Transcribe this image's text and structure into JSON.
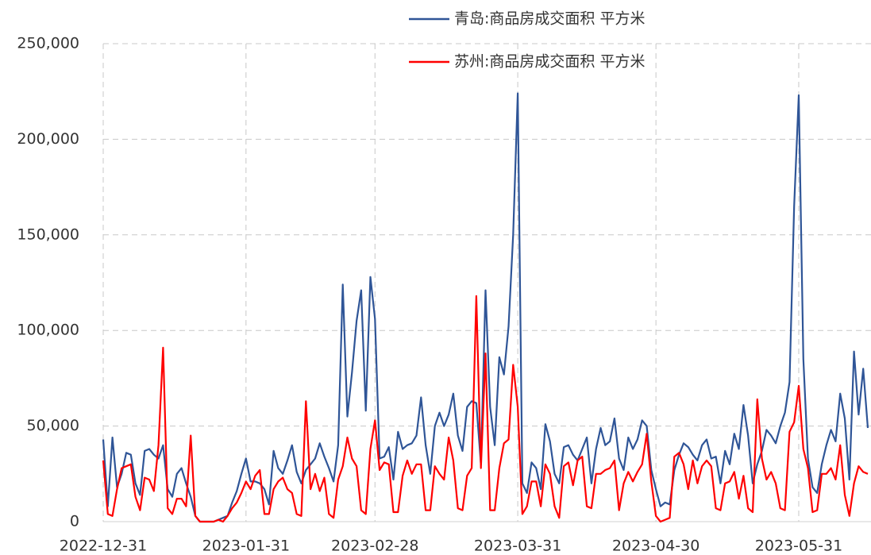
{
  "chart_data": {
    "type": "line",
    "x": [
      "2022-12-31",
      "2023-01-01",
      "2023-01-02",
      "2023-01-03",
      "2023-01-04",
      "2023-01-05",
      "2023-01-06",
      "2023-01-07",
      "2023-01-08",
      "2023-01-09",
      "2023-01-10",
      "2023-01-11",
      "2023-01-12",
      "2023-01-13",
      "2023-01-14",
      "2023-01-15",
      "2023-01-16",
      "2023-01-17",
      "2023-01-18",
      "2023-01-19",
      "2023-01-20",
      "2023-01-21",
      "2023-01-22",
      "2023-01-23",
      "2023-01-24",
      "2023-01-25",
      "2023-01-26",
      "2023-01-27",
      "2023-01-28",
      "2023-01-29",
      "2023-01-30",
      "2023-01-31",
      "2023-02-01",
      "2023-02-02",
      "2023-02-03",
      "2023-02-04",
      "2023-02-05",
      "2023-02-06",
      "2023-02-07",
      "2023-02-08",
      "2023-02-09",
      "2023-02-10",
      "2023-02-11",
      "2023-02-12",
      "2023-02-13",
      "2023-02-14",
      "2023-02-15",
      "2023-02-16",
      "2023-02-17",
      "2023-02-18",
      "2023-02-19",
      "2023-02-20",
      "2023-02-21",
      "2023-02-22",
      "2023-02-23",
      "2023-02-24",
      "2023-02-25",
      "2023-02-26",
      "2023-02-27",
      "2023-02-28",
      "2023-03-01",
      "2023-03-02",
      "2023-03-03",
      "2023-03-04",
      "2023-03-05",
      "2023-03-06",
      "2023-03-07",
      "2023-03-08",
      "2023-03-09",
      "2023-03-10",
      "2023-03-11",
      "2023-03-12",
      "2023-03-13",
      "2023-03-14",
      "2023-03-15",
      "2023-03-16",
      "2023-03-17",
      "2023-03-18",
      "2023-03-19",
      "2023-03-20",
      "2023-03-21",
      "2023-03-22",
      "2023-03-23",
      "2023-03-24",
      "2023-03-25",
      "2023-03-26",
      "2023-03-27",
      "2023-03-28",
      "2023-03-29",
      "2023-03-30",
      "2023-03-31",
      "2023-04-01",
      "2023-04-02",
      "2023-04-03",
      "2023-04-04",
      "2023-04-05",
      "2023-04-06",
      "2023-04-07",
      "2023-04-08",
      "2023-04-09",
      "2023-04-10",
      "2023-04-11",
      "2023-04-12",
      "2023-04-13",
      "2023-04-14",
      "2023-04-15",
      "2023-04-16",
      "2023-04-17",
      "2023-04-18",
      "2023-04-19",
      "2023-04-20",
      "2023-04-21",
      "2023-04-22",
      "2023-04-23",
      "2023-04-24",
      "2023-04-25",
      "2023-04-26",
      "2023-04-27",
      "2023-04-28",
      "2023-04-29",
      "2023-04-30",
      "2023-05-01",
      "2023-05-02",
      "2023-05-03",
      "2023-05-04",
      "2023-05-05",
      "2023-05-06",
      "2023-05-07",
      "2023-05-08",
      "2023-05-09",
      "2023-05-10",
      "2023-05-11",
      "2023-05-12",
      "2023-05-13",
      "2023-05-14",
      "2023-05-15",
      "2023-05-16",
      "2023-05-17",
      "2023-05-18",
      "2023-05-19",
      "2023-05-20",
      "2023-05-21",
      "2023-05-22",
      "2023-05-23",
      "2023-05-24",
      "2023-05-25",
      "2023-05-26",
      "2023-05-27",
      "2023-05-28",
      "2023-05-29",
      "2023-05-30",
      "2023-05-31",
      "2023-06-01",
      "2023-06-02",
      "2023-06-03",
      "2023-06-04",
      "2023-06-05",
      "2023-06-06",
      "2023-06-07",
      "2023-06-08",
      "2023-06-09",
      "2023-06-10",
      "2023-06-11",
      "2023-06-12",
      "2023-06-13",
      "2023-06-14",
      "2023-06-15"
    ],
    "series": [
      {
        "name": "青岛:商品房成交面积 平方米",
        "color": "#2f5597",
        "values": [
          43000,
          8000,
          44000,
          18000,
          25000,
          36000,
          35000,
          20000,
          14000,
          37000,
          38000,
          35000,
          33000,
          40000,
          17000,
          13000,
          25000,
          28000,
          20000,
          13000,
          3000,
          0,
          0,
          0,
          0,
          1000,
          2000,
          3000,
          10000,
          16000,
          25000,
          33000,
          21000,
          21000,
          20000,
          17000,
          9000,
          37000,
          28000,
          25000,
          32000,
          40000,
          26000,
          20000,
          27000,
          30000,
          33000,
          41000,
          34000,
          28000,
          21000,
          40000,
          124000,
          55000,
          78000,
          105000,
          121000,
          58000,
          128000,
          106000,
          33000,
          34000,
          39000,
          22000,
          47000,
          38000,
          40000,
          41000,
          45000,
          65000,
          40000,
          25000,
          50000,
          57000,
          50000,
          56000,
          67000,
          45000,
          37000,
          60000,
          63000,
          62000,
          30000,
          121000,
          60000,
          40000,
          86000,
          77000,
          102000,
          150000,
          224000,
          20000,
          15000,
          31000,
          28000,
          17000,
          51000,
          42000,
          25000,
          20000,
          39000,
          40000,
          35000,
          32000,
          38000,
          44000,
          20000,
          38000,
          49000,
          40000,
          42000,
          54000,
          33000,
          27000,
          44000,
          38000,
          43000,
          53000,
          50000,
          27000,
          17000,
          8000,
          10000,
          9000,
          27000,
          35000,
          41000,
          39000,
          35000,
          32000,
          40000,
          43000,
          33000,
          34000,
          20000,
          37000,
          30000,
          46000,
          38000,
          61000,
          45000,
          20000,
          30000,
          37000,
          48000,
          45000,
          41000,
          50000,
          57000,
          73000,
          165000,
          223000,
          85000,
          33000,
          18000,
          15000,
          30000,
          40000,
          48000,
          42000,
          67000,
          54000,
          22000,
          89000,
          56000,
          80000,
          49000
        ]
      },
      {
        "name": "苏州:商品房成交面积 平方米",
        "color": "#ff0000",
        "values": [
          32000,
          4000,
          3000,
          17000,
          28000,
          29000,
          30000,
          13000,
          6000,
          23000,
          22000,
          16000,
          40000,
          91000,
          7000,
          4000,
          12000,
          12000,
          8000,
          45000,
          3000,
          0,
          0,
          0,
          0,
          1000,
          0,
          3000,
          7000,
          10000,
          15000,
          21000,
          17000,
          24000,
          27000,
          4000,
          4000,
          17000,
          21000,
          23000,
          17000,
          15000,
          4000,
          3000,
          63000,
          17000,
          25000,
          16000,
          23000,
          4000,
          2000,
          22000,
          29000,
          44000,
          33000,
          29000,
          6000,
          4000,
          38000,
          53000,
          27000,
          31000,
          30000,
          5000,
          5000,
          24000,
          32000,
          25000,
          30000,
          30000,
          6000,
          6000,
          29000,
          25000,
          22000,
          44000,
          32000,
          7000,
          6000,
          24000,
          28000,
          118000,
          28000,
          88000,
          6000,
          6000,
          28000,
          41000,
          43000,
          82000,
          60000,
          4000,
          8000,
          21000,
          21000,
          8000,
          30000,
          25000,
          8000,
          2000,
          29000,
          31000,
          19000,
          32000,
          34000,
          8000,
          7000,
          25000,
          25000,
          27000,
          28000,
          32000,
          6000,
          20000,
          26000,
          21000,
          26000,
          30000,
          46000,
          21000,
          3000,
          0,
          1000,
          2000,
          34000,
          36000,
          30000,
          17000,
          32000,
          20000,
          29000,
          32000,
          29000,
          7000,
          6000,
          20000,
          21000,
          26000,
          12000,
          24000,
          7000,
          5000,
          64000,
          33000,
          22000,
          26000,
          20000,
          7000,
          6000,
          47000,
          52000,
          71000,
          38000,
          28000,
          5000,
          6000,
          25000,
          25000,
          28000,
          22000,
          40000,
          14000,
          3000,
          20000,
          29000,
          26000,
          25000
        ]
      }
    ],
    "xlim": [
      "2022-12-31",
      "2023-06-15"
    ],
    "xticks": [
      "2022-12-31",
      "2023-01-31",
      "2023-02-28",
      "2023-03-31",
      "2023-04-30",
      "2023-05-31"
    ],
    "ylim": [
      0,
      250000
    ],
    "yticks": [
      0,
      {
        "value": 50000,
        "label": "50,000"
      },
      {
        "value": 100000,
        "label": "100,000"
      },
      {
        "value": 150000,
        "label": "150,000"
      },
      {
        "value": 200000,
        "label": "200,000"
      },
      {
        "value": 250000,
        "label": "250,000"
      }
    ],
    "grid": true,
    "legend": "top"
  }
}
